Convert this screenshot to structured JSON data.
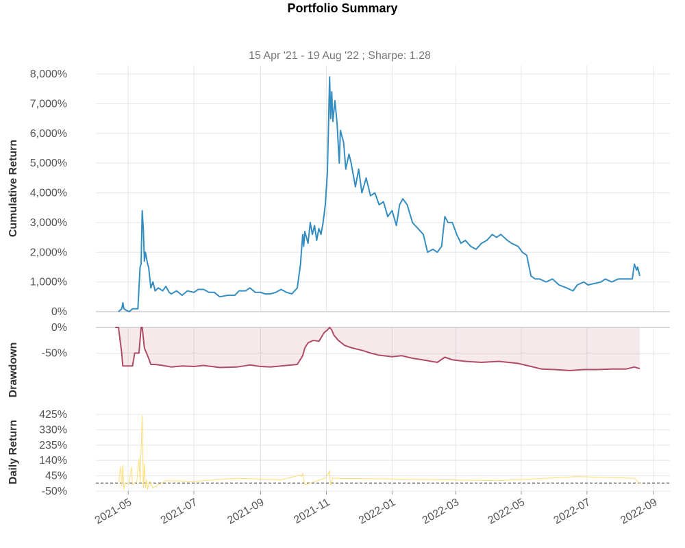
{
  "chart_data": {
    "type": "line",
    "title": "Portfolio Summary",
    "subtitle": "15 Apr '21 - 19 Aug '22 ;  Sharpe: 1.28",
    "x_ticks": [
      "2021-05",
      "2021-07",
      "2021-09",
      "2021-11",
      "2022-01",
      "2022-03",
      "2022-05",
      "2022-07",
      "2022-09"
    ],
    "panels": [
      {
        "name": "cumulative",
        "ylabel": "Cumulative Return",
        "yticks": [
          "8,000%",
          "7,000%",
          "6,000%",
          "5,000%",
          "4,000%",
          "3,000%",
          "2,000%",
          "1,000%",
          "0%"
        ],
        "ylim": [
          0,
          8000
        ],
        "color": "#348dc1",
        "points": [
          [
            "2021-04-22",
            0
          ],
          [
            "2021-04-25",
            100
          ],
          [
            "2021-04-26",
            300
          ],
          [
            "2021-04-27",
            100
          ],
          [
            "2021-04-29",
            50
          ],
          [
            "2021-05-02",
            0
          ],
          [
            "2021-05-05",
            100
          ],
          [
            "2021-05-10",
            100
          ],
          [
            "2021-05-12",
            1500
          ],
          [
            "2021-05-13",
            1600
          ],
          [
            "2021-05-14",
            3400
          ],
          [
            "2021-05-15",
            2800
          ],
          [
            "2021-05-16",
            1700
          ],
          [
            "2021-05-17",
            2000
          ],
          [
            "2021-05-19",
            1600
          ],
          [
            "2021-05-20",
            1500
          ],
          [
            "2021-05-22",
            800
          ],
          [
            "2021-05-24",
            1000
          ],
          [
            "2021-05-26",
            700
          ],
          [
            "2021-05-29",
            800
          ],
          [
            "2021-06-02",
            700
          ],
          [
            "2021-06-05",
            850
          ],
          [
            "2021-06-08",
            650
          ],
          [
            "2021-06-10",
            600
          ],
          [
            "2021-06-15",
            700
          ],
          [
            "2021-06-20",
            550
          ],
          [
            "2021-06-25",
            700
          ],
          [
            "2021-07-01",
            650
          ],
          [
            "2021-07-05",
            750
          ],
          [
            "2021-07-10",
            750
          ],
          [
            "2021-07-15",
            650
          ],
          [
            "2021-07-20",
            650
          ],
          [
            "2021-07-25",
            500
          ],
          [
            "2021-08-01",
            550
          ],
          [
            "2021-08-08",
            550
          ],
          [
            "2021-08-12",
            700
          ],
          [
            "2021-08-18",
            700
          ],
          [
            "2021-08-22",
            800
          ],
          [
            "2021-08-27",
            650
          ],
          [
            "2021-09-01",
            650
          ],
          [
            "2021-09-05",
            600
          ],
          [
            "2021-09-10",
            600
          ],
          [
            "2021-09-15",
            650
          ],
          [
            "2021-09-20",
            750
          ],
          [
            "2021-09-25",
            650
          ],
          [
            "2021-09-30",
            600
          ],
          [
            "2021-10-05",
            800
          ],
          [
            "2021-10-08",
            1600
          ],
          [
            "2021-10-10",
            2600
          ],
          [
            "2021-10-11",
            2200
          ],
          [
            "2021-10-12",
            2700
          ],
          [
            "2021-10-15",
            2300
          ],
          [
            "2021-10-17",
            3000
          ],
          [
            "2021-10-19",
            2600
          ],
          [
            "2021-10-21",
            2900
          ],
          [
            "2021-10-23",
            2400
          ],
          [
            "2021-10-25",
            2800
          ],
          [
            "2021-10-27",
            2600
          ],
          [
            "2021-10-29",
            3000
          ],
          [
            "2021-10-31",
            3600
          ],
          [
            "2021-11-02",
            4700
          ],
          [
            "2021-11-04",
            7900
          ],
          [
            "2021-11-05",
            6500
          ],
          [
            "2021-11-06",
            7400
          ],
          [
            "2021-11-07",
            6400
          ],
          [
            "2021-11-09",
            7100
          ],
          [
            "2021-11-11",
            6300
          ],
          [
            "2021-11-13",
            5000
          ],
          [
            "2021-11-14",
            6100
          ],
          [
            "2021-11-17",
            5700
          ],
          [
            "2021-11-19",
            4800
          ],
          [
            "2021-11-22",
            5300
          ],
          [
            "2021-11-24",
            5000
          ],
          [
            "2021-11-28",
            4200
          ],
          [
            "2021-12-01",
            4800
          ],
          [
            "2021-12-04",
            4000
          ],
          [
            "2021-12-08",
            4500
          ],
          [
            "2021-12-12",
            3900
          ],
          [
            "2021-12-16",
            4000
          ],
          [
            "2021-12-20",
            3600
          ],
          [
            "2021-12-24",
            3700
          ],
          [
            "2021-12-28",
            3200
          ],
          [
            "2022-01-01",
            3400
          ],
          [
            "2022-01-05",
            2900
          ],
          [
            "2022-01-08",
            3600
          ],
          [
            "2022-01-11",
            3800
          ],
          [
            "2022-01-15",
            3600
          ],
          [
            "2022-01-20",
            3000
          ],
          [
            "2022-01-25",
            2800
          ],
          [
            "2022-01-30",
            2600
          ],
          [
            "2022-02-03",
            2000
          ],
          [
            "2022-02-08",
            2100
          ],
          [
            "2022-02-12",
            2000
          ],
          [
            "2022-02-16",
            2200
          ],
          [
            "2022-02-19",
            3200
          ],
          [
            "2022-02-22",
            3000
          ],
          [
            "2022-02-26",
            3000
          ],
          [
            "2022-03-02",
            2600
          ],
          [
            "2022-03-06",
            2300
          ],
          [
            "2022-03-10",
            2400
          ],
          [
            "2022-03-15",
            2200
          ],
          [
            "2022-03-20",
            2100
          ],
          [
            "2022-03-25",
            2300
          ],
          [
            "2022-03-30",
            2400
          ],
          [
            "2022-04-04",
            2600
          ],
          [
            "2022-04-08",
            2500
          ],
          [
            "2022-04-12",
            2600
          ],
          [
            "2022-04-18",
            2400
          ],
          [
            "2022-04-22",
            2300
          ],
          [
            "2022-04-28",
            2200
          ],
          [
            "2022-05-02",
            2000
          ],
          [
            "2022-05-06",
            1900
          ],
          [
            "2022-05-10",
            1200
          ],
          [
            "2022-05-14",
            1100
          ],
          [
            "2022-05-18",
            1100
          ],
          [
            "2022-05-24",
            1000
          ],
          [
            "2022-05-30",
            1100
          ],
          [
            "2022-06-05",
            900
          ],
          [
            "2022-06-12",
            800
          ],
          [
            "2022-06-18",
            700
          ],
          [
            "2022-06-22",
            900
          ],
          [
            "2022-06-28",
            1000
          ],
          [
            "2022-07-02",
            900
          ],
          [
            "2022-07-08",
            950
          ],
          [
            "2022-07-14",
            1000
          ],
          [
            "2022-07-18",
            1100
          ],
          [
            "2022-07-24",
            1000
          ],
          [
            "2022-07-30",
            1100
          ],
          [
            "2022-08-06",
            1100
          ],
          [
            "2022-08-12",
            1100
          ],
          [
            "2022-08-14",
            1600
          ],
          [
            "2022-08-16",
            1400
          ],
          [
            "2022-08-17",
            1500
          ],
          [
            "2022-08-19",
            1200
          ]
        ]
      },
      {
        "name": "drawdown",
        "ylabel": "Drawdown",
        "yticks": [
          "0%",
          "-50%"
        ],
        "ylim": [
          -84,
          0
        ],
        "color": "#af4b64",
        "fill": "#af4b64",
        "points": [
          [
            "2021-04-19",
            0
          ],
          [
            "2021-04-22",
            0
          ],
          [
            "2021-04-25",
            -50
          ],
          [
            "2021-04-26",
            -75
          ],
          [
            "2021-05-05",
            -75
          ],
          [
            "2021-05-07",
            -50
          ],
          [
            "2021-05-11",
            -50
          ],
          [
            "2021-05-13",
            0
          ],
          [
            "2021-05-14",
            0
          ],
          [
            "2021-05-16",
            -40
          ],
          [
            "2021-05-18",
            -50
          ],
          [
            "2021-05-20",
            -60
          ],
          [
            "2021-05-22",
            -72
          ],
          [
            "2021-05-26",
            -72
          ],
          [
            "2021-06-02",
            -74
          ],
          [
            "2021-06-10",
            -77
          ],
          [
            "2021-06-20",
            -75
          ],
          [
            "2021-07-01",
            -76
          ],
          [
            "2021-07-10",
            -74
          ],
          [
            "2021-07-25",
            -78
          ],
          [
            "2021-08-10",
            -77
          ],
          [
            "2021-08-22",
            -73
          ],
          [
            "2021-09-01",
            -76
          ],
          [
            "2021-09-10",
            -77
          ],
          [
            "2021-09-20",
            -75
          ],
          [
            "2021-10-05",
            -72
          ],
          [
            "2021-10-10",
            -55
          ],
          [
            "2021-10-12",
            -40
          ],
          [
            "2021-10-15",
            -30
          ],
          [
            "2021-10-20",
            -25
          ],
          [
            "2021-10-25",
            -27
          ],
          [
            "2021-10-30",
            -10
          ],
          [
            "2021-11-02",
            -5
          ],
          [
            "2021-11-04",
            0
          ],
          [
            "2021-11-06",
            -5
          ],
          [
            "2021-11-08",
            -15
          ],
          [
            "2021-11-12",
            -25
          ],
          [
            "2021-11-18",
            -35
          ],
          [
            "2021-11-25",
            -40
          ],
          [
            "2021-12-05",
            -45
          ],
          [
            "2021-12-12",
            -50
          ],
          [
            "2021-12-20",
            -54
          ],
          [
            "2022-01-01",
            -57
          ],
          [
            "2022-01-10",
            -55
          ],
          [
            "2022-01-20",
            -60
          ],
          [
            "2022-02-01",
            -64
          ],
          [
            "2022-02-12",
            -68
          ],
          [
            "2022-02-19",
            -58
          ],
          [
            "2022-02-26",
            -63
          ],
          [
            "2022-03-10",
            -66
          ],
          [
            "2022-03-25",
            -68
          ],
          [
            "2022-04-10",
            -66
          ],
          [
            "2022-04-28",
            -70
          ],
          [
            "2022-05-10",
            -76
          ],
          [
            "2022-05-20",
            -81
          ],
          [
            "2022-06-01",
            -82
          ],
          [
            "2022-06-15",
            -84
          ],
          [
            "2022-06-28",
            -82
          ],
          [
            "2022-07-10",
            -82
          ],
          [
            "2022-07-24",
            -81
          ],
          [
            "2022-08-06",
            -81
          ],
          [
            "2022-08-14",
            -77
          ],
          [
            "2022-08-17",
            -79
          ],
          [
            "2022-08-19",
            -80
          ]
        ]
      },
      {
        "name": "daily",
        "ylabel": "Daily Return",
        "yticks": [
          "425%",
          "330%",
          "235%",
          "140%",
          "45%",
          "-50%"
        ],
        "ylim": [
          -50,
          425
        ],
        "color": "#fedd78",
        "baseline_color": "#555555",
        "points": [
          [
            "2021-04-22",
            0
          ],
          [
            "2021-04-24",
            100
          ],
          [
            "2021-04-25",
            -20
          ],
          [
            "2021-04-26",
            110
          ],
          [
            "2021-04-27",
            -40
          ],
          [
            "2021-04-28",
            0
          ],
          [
            "2021-05-02",
            5
          ],
          [
            "2021-05-04",
            100
          ],
          [
            "2021-05-05",
            -10
          ],
          [
            "2021-05-09",
            10
          ],
          [
            "2021-05-11",
            150
          ],
          [
            "2021-05-12",
            0
          ],
          [
            "2021-05-14",
            420
          ],
          [
            "2021-05-15",
            -30
          ],
          [
            "2021-05-16",
            120
          ],
          [
            "2021-05-17",
            -30
          ],
          [
            "2021-05-18",
            20
          ],
          [
            "2021-05-19",
            -40
          ],
          [
            "2021-05-21",
            10
          ],
          [
            "2021-05-24",
            -30
          ],
          [
            "2021-06-05",
            15
          ],
          [
            "2021-07-01",
            10
          ],
          [
            "2021-08-10",
            30
          ],
          [
            "2021-09-20",
            20
          ],
          [
            "2021-10-08",
            50
          ],
          [
            "2021-10-09",
            40
          ],
          [
            "2021-10-10",
            60
          ],
          [
            "2021-10-12",
            -10
          ],
          [
            "2021-10-31",
            30
          ],
          [
            "2021-11-04",
            75
          ],
          [
            "2021-11-05",
            -15
          ],
          [
            "2021-11-07",
            30
          ],
          [
            "2022-02-19",
            20
          ],
          [
            "2022-04-10",
            15
          ],
          [
            "2022-06-22",
            40
          ],
          [
            "2022-08-14",
            30
          ],
          [
            "2022-08-19",
            -5
          ]
        ]
      }
    ]
  }
}
